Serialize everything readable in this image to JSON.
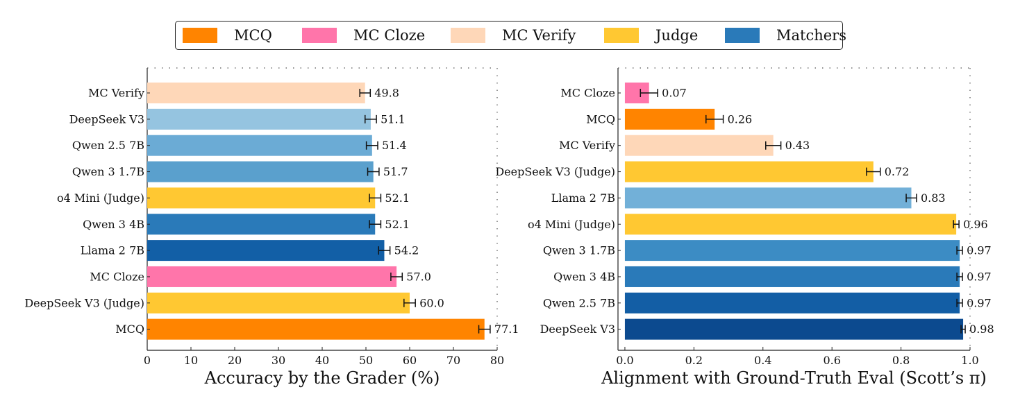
{
  "legend": [
    {
      "label": "MCQ",
      "color": "#ff8400"
    },
    {
      "label": "MC Cloze",
      "color": "#ff75aa"
    },
    {
      "label": "MC Verify",
      "color": "#fed7b8"
    },
    {
      "label": "Judge",
      "color": "#ffc832"
    },
    {
      "label": "Matchers",
      "color": "#2a7ab9"
    }
  ],
  "chart_data": [
    {
      "type": "bar",
      "orientation": "horizontal",
      "xlabel": "Accuracy by the Grader (%)",
      "xlim": [
        0,
        80
      ],
      "xticks": [
        "0",
        "10",
        "20",
        "30",
        "40",
        "50",
        "60",
        "70",
        "80"
      ],
      "error_bars": true,
      "categories": [
        "MC Verify",
        "DeepSeek V3",
        "Qwen 2.5 7B",
        "Qwen 3 1.7B",
        "o4 Mini (Judge)",
        "Qwen 3 4B",
        "Llama 2 7B",
        "MC Cloze",
        "DeepSeek V3 (Judge)",
        "MCQ"
      ],
      "values": [
        49.8,
        51.1,
        51.4,
        51.7,
        52.1,
        52.1,
        54.2,
        57.0,
        60.0,
        77.1
      ],
      "value_labels": [
        "49.8",
        "51.1",
        "51.4",
        "51.7",
        "52.1",
        "52.1",
        "54.2",
        "57.0",
        "60.0",
        "77.1"
      ],
      "errors": [
        1.2,
        1.3,
        1.3,
        1.3,
        1.3,
        1.3,
        1.3,
        1.3,
        1.3,
        1.3
      ],
      "colors": [
        "#fed7b8",
        "#95c4e0",
        "#6babd5",
        "#5aa0cd",
        "#ffc832",
        "#2a7ab9",
        "#125fa6",
        "#ff75aa",
        "#ffc832",
        "#ff8400"
      ]
    },
    {
      "type": "bar",
      "orientation": "horizontal",
      "xlabel": "Alignment with Ground-Truth Eval (Scott’s π)",
      "xlim": [
        -0.02,
        1.0
      ],
      "xticks": [
        "0.0",
        "0.2",
        "0.4",
        "0.6",
        "0.8",
        "1.0"
      ],
      "error_bars": true,
      "categories": [
        "MC Cloze",
        "MCQ",
        "MC Verify",
        "DeepSeek V3 (Judge)",
        "Llama 2 7B",
        "o4 Mini (Judge)",
        "Qwen 3 1.7B",
        "Qwen 3 4B",
        "Qwen 2.5 7B",
        "DeepSeek V3"
      ],
      "values": [
        0.07,
        0.26,
        0.43,
        0.72,
        0.83,
        0.96,
        0.97,
        0.97,
        0.97,
        0.98
      ],
      "value_labels": [
        "0.07",
        "0.26",
        "0.43",
        "0.72",
        "0.83",
        "0.96",
        "0.97",
        "0.97",
        "0.97",
        "0.98"
      ],
      "errors": [
        0.025,
        0.025,
        0.022,
        0.02,
        0.015,
        0.008,
        0.008,
        0.008,
        0.008,
        0.006
      ],
      "colors": [
        "#ff75aa",
        "#ff8400",
        "#fed7b8",
        "#ffc832",
        "#72b0d8",
        "#ffc832",
        "#3c8cc4",
        "#2a7ab9",
        "#135ea5",
        "#0c4a8f"
      ]
    }
  ]
}
